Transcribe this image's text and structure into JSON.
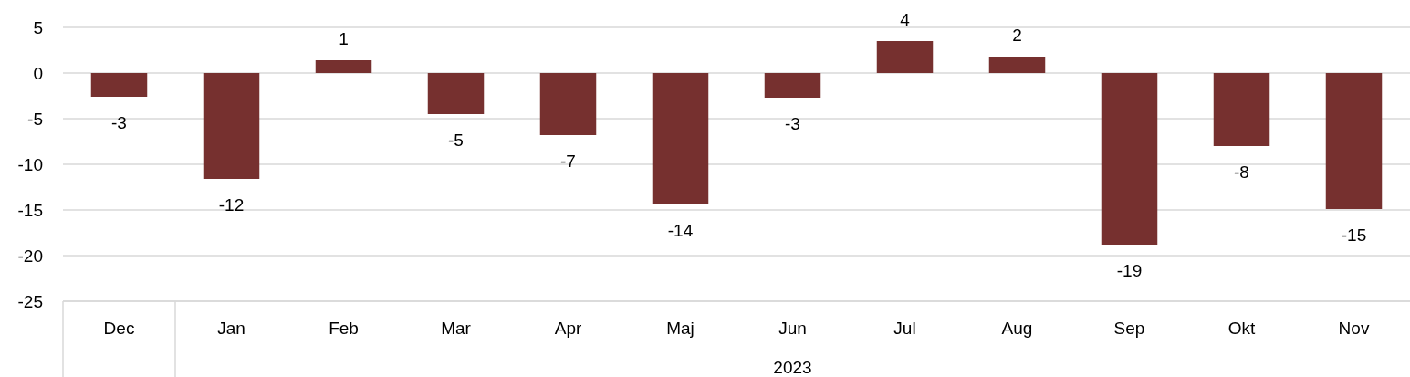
{
  "chart_data": {
    "type": "bar",
    "categories": [
      "Dec",
      "Jan",
      "Feb",
      "Mar",
      "Apr",
      "Maj",
      "Jun",
      "Jul",
      "Aug",
      "Sep",
      "Okt",
      "Nov"
    ],
    "values": [
      -2.6,
      -11.6,
      1.4,
      -4.5,
      -6.8,
      -14.4,
      -2.7,
      3.5,
      1.8,
      -18.8,
      -8.0,
      -14.9
    ],
    "value_labels": [
      "-3",
      "-12",
      "1",
      "-5",
      "-7",
      "-14",
      "-3",
      "4",
      "2",
      "-19",
      "-8",
      "-15"
    ],
    "color": "#76302f",
    "ylim": [
      -25,
      5
    ],
    "yticks": [
      -25,
      -20,
      -15,
      -10,
      -5,
      0,
      5
    ],
    "grid": "y",
    "annotations": [
      "2023"
    ]
  }
}
